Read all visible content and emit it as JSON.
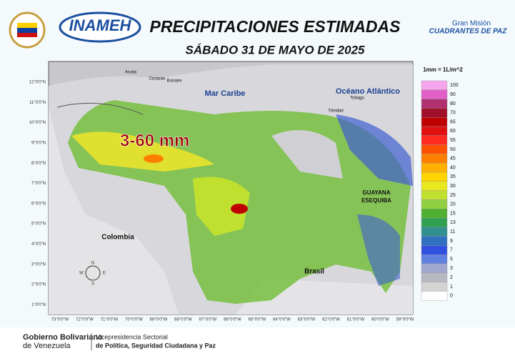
{
  "header": {
    "agency": "INAMEH",
    "title": "PRECIPITACIONES ESTIMADAS",
    "date": "SÁBADO 31 DE MAYO DE 2025",
    "partner_line1": "Gran Misión",
    "partner_line2": "CUADRANTES DE PAZ"
  },
  "map": {
    "annotation": "3-60 mm",
    "labels": [
      "Mar Caribe",
      "Océano Atlántico",
      "Colombia",
      "Brasil",
      "GUAYANA",
      "ESEQUIBA",
      "Aruba",
      "Curazao",
      "Bonaire",
      "Trinidad",
      "Tobago"
    ],
    "compass": [
      "N",
      "S",
      "E",
      "W"
    ],
    "lat_labels": [
      "12°0'0\"N",
      "11°0'0\"N",
      "10°0'0\"N",
      "9°0'0\"N",
      "8°0'0\"N",
      "7°0'0\"N",
      "6°0'0\"N",
      "5°0'0\"N",
      "4°0'0\"N",
      "3°0'0\"N",
      "2°0'0\"N",
      "1°0'0\"N"
    ],
    "lon_labels": [
      "73°0'0\"W",
      "72°0'0\"W",
      "71°0'0\"W",
      "70°0'0\"W",
      "69°0'0\"W",
      "68°0'0\"W",
      "67°0'0\"W",
      "66°0'0\"W",
      "65°0'0\"W",
      "64°0'0\"W",
      "63°0'0\"W",
      "62°0'0\"W",
      "61°0'0\"W",
      "60°0'0\"W",
      "59°0'0\"W"
    ]
  },
  "legend": {
    "title": "1mm = 1L/m^2",
    "entries": [
      {
        "label": 100,
        "color": "#f4a6ec"
      },
      {
        "label": 90,
        "color": "#e060c8"
      },
      {
        "label": 80,
        "color": "#b03070"
      },
      {
        "label": 70,
        "color": "#a0102a"
      },
      {
        "label": 65,
        "color": "#c00000"
      },
      {
        "label": 60,
        "color": "#e01010"
      },
      {
        "label": 55,
        "color": "#ff2a20"
      },
      {
        "label": 50,
        "color": "#ff5000"
      },
      {
        "label": 45,
        "color": "#ff8000"
      },
      {
        "label": 40,
        "color": "#ffb000"
      },
      {
        "label": 35,
        "color": "#ffd400"
      },
      {
        "label": 30,
        "color": "#e8e820"
      },
      {
        "label": 25,
        "color": "#c0e030"
      },
      {
        "label": 20,
        "color": "#90d040"
      },
      {
        "label": 15,
        "color": "#50b030"
      },
      {
        "label": 13,
        "color": "#30a050"
      },
      {
        "label": 11,
        "color": "#309090"
      },
      {
        "label": 9,
        "color": "#3070c0"
      },
      {
        "label": 7,
        "color": "#3050e0"
      },
      {
        "label": 5,
        "color": "#6080e0"
      },
      {
        "label": 3,
        "color": "#a0a8d0"
      },
      {
        "label": 2,
        "color": "#b8b8c0"
      },
      {
        "label": 1,
        "color": "#d4d4d4"
      },
      {
        "label": 0,
        "color": "#ffffff"
      }
    ]
  },
  "footer": {
    "gov_line1": "Gobierno Bolivariano",
    "gov_line2": "de Venezuela",
    "office_line1": "Vicepresidencia Sectorial",
    "office_line2": "de Política, Seguridad Ciudadana y Paz"
  }
}
